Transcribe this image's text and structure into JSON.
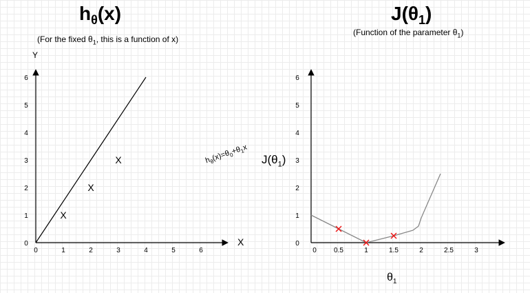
{
  "left": {
    "title_main": "h",
    "title_sub": "θ",
    "title_arg": "(x)",
    "subtitle_before": "(For the fixed θ",
    "subtitle_sub": "1",
    "subtitle_after": ", this is a function of x)",
    "y_axis_label": "Y",
    "x_axis_label": "X",
    "line_label": {
      "h": "h",
      "h_sub": "θ",
      "mid": "(x)=θ",
      "s0": "0",
      "plus": "+θ",
      "s1": "1",
      "x": "x"
    }
  },
  "right": {
    "title_main": "J(θ",
    "title_sub": "1",
    "title_close": ")",
    "subtitle": "(Function of the parameter θ",
    "subtitle_sub": "1",
    "subtitle_close": ")",
    "y_axis_label_main": "J(θ",
    "y_axis_label_sub": "1",
    "y_axis_label_close": ")",
    "x_axis_label_main": "θ",
    "x_axis_label_sub": "1"
  },
  "chart_data": [
    {
      "type": "scatter",
      "x_ticks": [
        "0",
        "1",
        "2",
        "3",
        "4",
        "5",
        "6"
      ],
      "y_ticks": [
        "0",
        "1",
        "2",
        "3",
        "4",
        "5",
        "6"
      ],
      "xlim": [
        0,
        7
      ],
      "ylim": [
        0,
        6
      ],
      "points": [
        {
          "x": 1,
          "y": 1
        },
        {
          "x": 2,
          "y": 2
        },
        {
          "x": 3,
          "y": 3
        }
      ],
      "marker": "X",
      "line": {
        "from": [
          0,
          0
        ],
        "to": [
          4,
          6
        ]
      },
      "line_color": "#000000"
    },
    {
      "type": "line",
      "x_ticks": [
        "0",
        "0.5",
        "1",
        "1.5",
        "2",
        "2.5",
        "3"
      ],
      "x_tick_values": [
        0,
        0.5,
        1,
        1.5,
        2,
        2.5,
        3
      ],
      "y_ticks": [
        "0",
        "1",
        "2",
        "3",
        "4",
        "5",
        "6"
      ],
      "xlim": [
        0,
        3.5
      ],
      "ylim": [
        0,
        6
      ],
      "curve": [
        {
          "x": 0,
          "y": 1
        },
        {
          "x": 0.5,
          "y": 0.5
        },
        {
          "x": 1,
          "y": 0
        },
        {
          "x": 1.5,
          "y": 0.25
        },
        {
          "x": 1.85,
          "y": 0.45
        },
        {
          "x": 1.95,
          "y": 0.6
        },
        {
          "x": 2,
          "y": 0.9
        },
        {
          "x": 2.35,
          "y": 2.5
        }
      ],
      "points": [
        {
          "x": 0.5,
          "y": 0.5
        },
        {
          "x": 1,
          "y": 0
        },
        {
          "x": 1.5,
          "y": 0.25
        }
      ],
      "curve_color": "#888888",
      "marker_color": "#ee1111"
    }
  ]
}
